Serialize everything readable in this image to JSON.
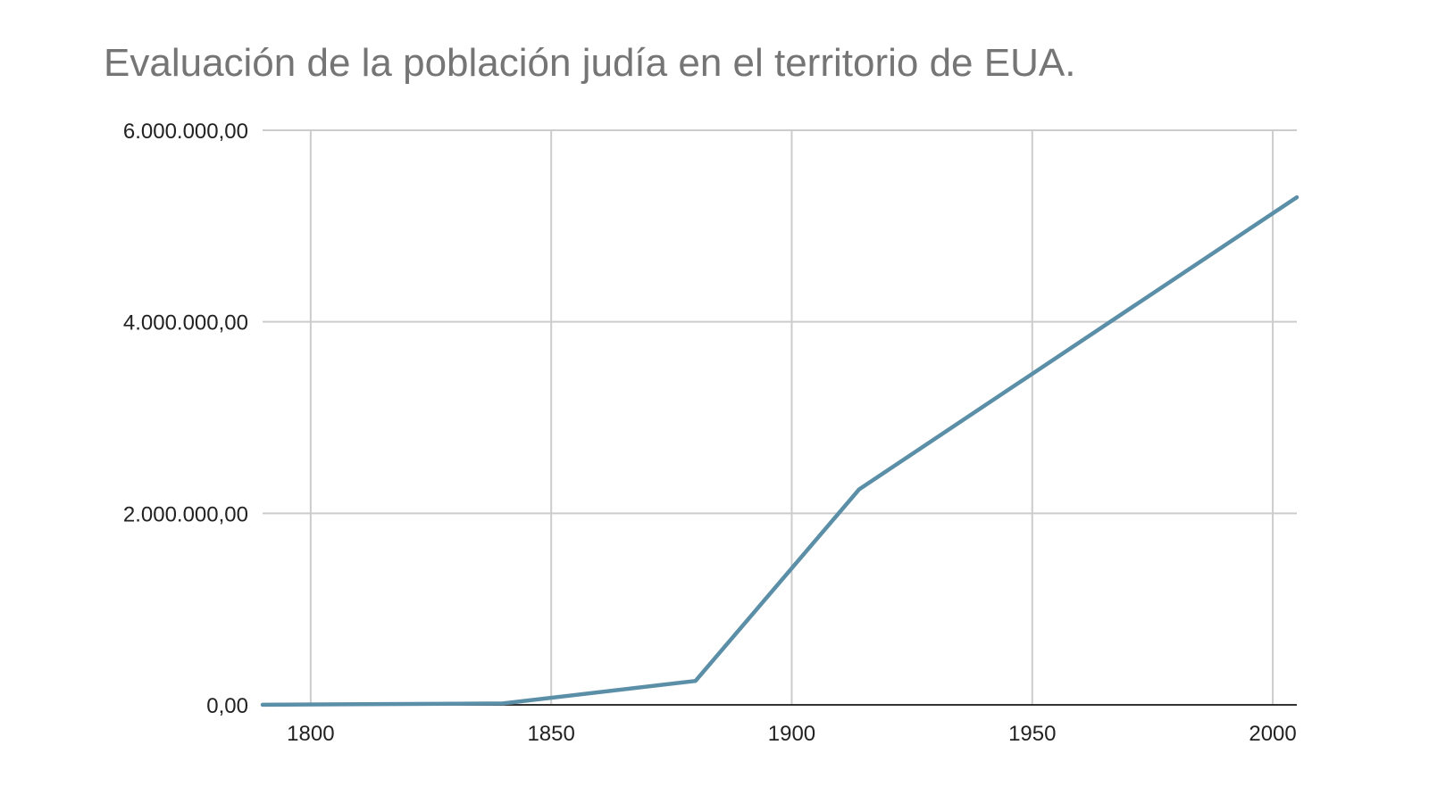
{
  "chart_data": {
    "type": "line",
    "title": "Evaluación de la población judía en el territorio de EUA.",
    "xlabel": "",
    "ylabel": "",
    "x_ticks": [
      1800,
      1850,
      1900,
      1950,
      2000
    ],
    "x_tick_labels": [
      "1800",
      "1850",
      "1900",
      "1950",
      "2000"
    ],
    "y_ticks": [
      0,
      2000000,
      4000000,
      6000000
    ],
    "y_tick_labels": [
      "0,00",
      "2.000.000,00",
      "4.000.000,00",
      "6.000.000,00"
    ],
    "xlim": [
      1790,
      2005
    ],
    "ylim": [
      0,
      6000000
    ],
    "grid": true,
    "series": [
      {
        "color": "#5b8fa8",
        "x": [
          1790,
          1840,
          1880,
          1914,
          2005
        ],
        "y": [
          1300,
          15000,
          250000,
          2250000,
          5300000
        ]
      }
    ]
  }
}
